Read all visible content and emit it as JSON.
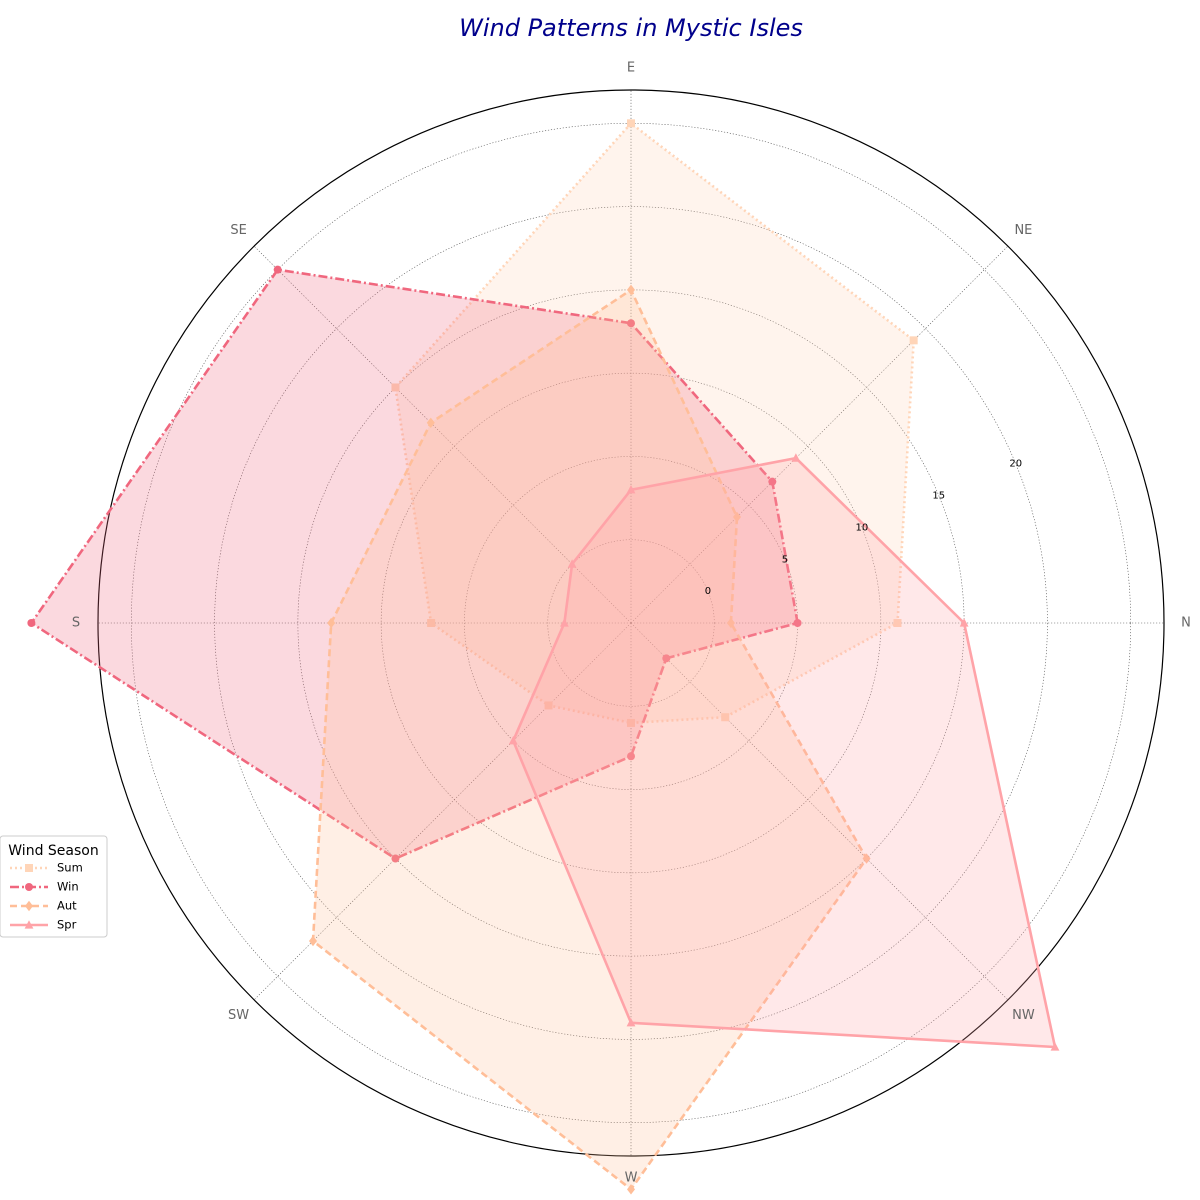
{
  "chart_data": {
    "type": "radar",
    "title": "Wind Patterns in Mystic Isles",
    "directions": [
      "N",
      "NE",
      "E",
      "SE",
      "S",
      "SW",
      "W",
      "NW"
    ],
    "radial_ticks": [
      0,
      5,
      10,
      15,
      20
    ],
    "rlim": [
      -5,
      27
    ],
    "grid": true,
    "legend": {
      "title": "Wind Season",
      "placement": "lower-left"
    },
    "series": [
      {
        "name": "Sum",
        "values": [
          11,
          19,
          25,
          15,
          7,
          2,
          1,
          3
        ],
        "color": "#ffd5b8",
        "line_style": "dotted",
        "marker": "square"
      },
      {
        "name": "Win",
        "values": [
          5,
          7,
          13,
          25,
          31,
          15,
          3,
          -2
        ],
        "color": "#f0677e",
        "line_style": "dashdot",
        "marker": "circle"
      },
      {
        "name": "Aut",
        "values": [
          1,
          4,
          15,
          12,
          13,
          22,
          29,
          15
        ],
        "color": "#ffbe98",
        "line_style": "dashed",
        "marker": "diamond"
      },
      {
        "name": "Spr",
        "values": [
          15,
          9,
          3,
          0,
          -1,
          5,
          19,
          31
        ],
        "color": "#ffa3a8",
        "line_style": "solid",
        "marker": "triangle"
      }
    ]
  }
}
